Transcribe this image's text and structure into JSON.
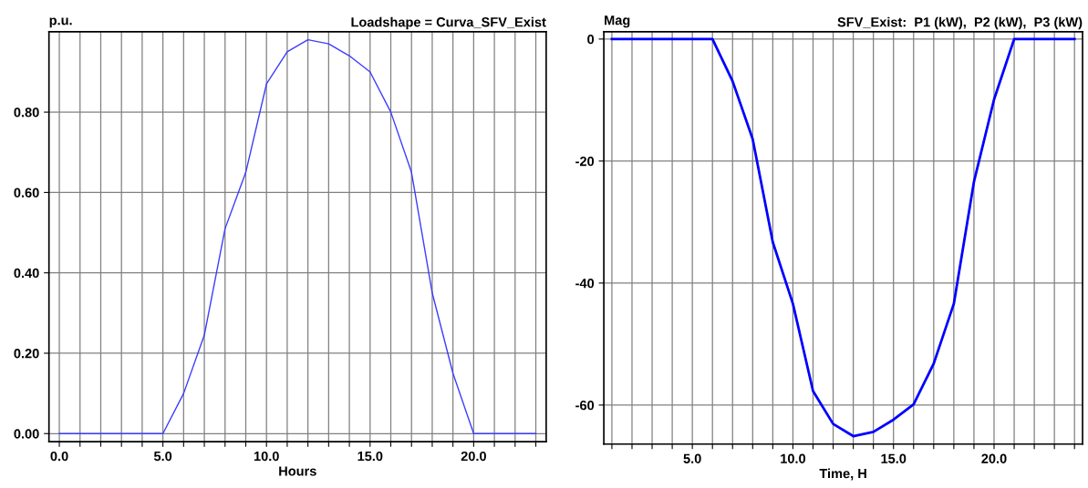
{
  "chart_data": [
    {
      "type": "line",
      "title": "Loadshape = Curva_SFV_Exist",
      "ylabel": "p.u.",
      "xlabel": "Hours",
      "x": [
        0,
        1,
        2,
        3,
        4,
        5,
        6,
        7,
        8,
        9,
        10,
        11,
        12,
        13,
        14,
        15,
        16,
        17,
        18,
        19,
        20,
        21,
        22,
        23
      ],
      "series": [
        {
          "color": "#3c3cff",
          "values": [
            0,
            0,
            0,
            0,
            0,
            0,
            0.1,
            0.245,
            0.51,
            0.65,
            0.87,
            0.95,
            0.98,
            0.97,
            0.94,
            0.9,
            0.8,
            0.65,
            0.35,
            0.15,
            0,
            0,
            0,
            0
          ]
        }
      ],
      "xlim": [
        -0.5,
        23.5
      ],
      "ylim": [
        -0.02,
        1.0
      ],
      "xticks": [
        {
          "value": 0,
          "label": "0.0"
        },
        {
          "value": 1,
          "label": null
        },
        {
          "value": 2,
          "label": null
        },
        {
          "value": 3,
          "label": null
        },
        {
          "value": 4,
          "label": null
        },
        {
          "value": 5,
          "label": "5.0"
        },
        {
          "value": 6,
          "label": null
        },
        {
          "value": 7,
          "label": null
        },
        {
          "value": 8,
          "label": null
        },
        {
          "value": 9,
          "label": null
        },
        {
          "value": 10,
          "label": "10.0"
        },
        {
          "value": 11,
          "label": null
        },
        {
          "value": 12,
          "label": null
        },
        {
          "value": 13,
          "label": null
        },
        {
          "value": 14,
          "label": null
        },
        {
          "value": 15,
          "label": "15.0"
        },
        {
          "value": 16,
          "label": null
        },
        {
          "value": 17,
          "label": null
        },
        {
          "value": 18,
          "label": null
        },
        {
          "value": 19,
          "label": null
        },
        {
          "value": 20,
          "label": "20.0"
        },
        {
          "value": 21,
          "label": null
        },
        {
          "value": 22,
          "label": null
        },
        {
          "value": 23,
          "label": null
        }
      ],
      "yticks": [
        {
          "value": 0,
          "label": "0.00"
        },
        {
          "value": 0.2,
          "label": "0.20"
        },
        {
          "value": 0.4,
          "label": "0.40"
        },
        {
          "value": 0.6,
          "label": "0.60"
        },
        {
          "value": 0.8,
          "label": "0.80"
        }
      ],
      "grid": true,
      "line_style": "solid",
      "marker": "none",
      "legend": false
    },
    {
      "type": "line",
      "title": "SFV_Exist:  P1 (kW),  P2 (kW),  P3 (kW)",
      "ylabel": "Mag",
      "xlabel": "Time, H",
      "x": [
        1,
        2,
        3,
        4,
        5,
        6,
        7,
        8,
        9,
        10,
        11,
        12,
        13,
        14,
        15,
        16,
        17,
        18,
        19,
        20,
        21,
        22,
        23,
        24
      ],
      "series": [
        {
          "color": "#0000ff",
          "values": [
            0,
            0,
            0,
            0,
            0,
            0,
            -6.9,
            -16.4,
            -33.3,
            -43.4,
            -57.7,
            -63.1,
            -65.1,
            -64.4,
            -62.4,
            -59.9,
            -53.2,
            -43.4,
            -23.4,
            -9.9,
            0,
            0,
            0,
            0
          ]
        }
      ],
      "xlim": [
        0.6,
        24.4
      ],
      "ylim": [
        -66.4,
        1.2
      ],
      "xticks": [
        {
          "value": 1,
          "label": null
        },
        {
          "value": 2,
          "label": null
        },
        {
          "value": 3,
          "label": null
        },
        {
          "value": 4,
          "label": null
        },
        {
          "value": 5,
          "label": "5.0"
        },
        {
          "value": 6,
          "label": null
        },
        {
          "value": 7,
          "label": null
        },
        {
          "value": 8,
          "label": null
        },
        {
          "value": 9,
          "label": null
        },
        {
          "value": 10,
          "label": "10.0"
        },
        {
          "value": 11,
          "label": null
        },
        {
          "value": 12,
          "label": null
        },
        {
          "value": 13,
          "label": null
        },
        {
          "value": 14,
          "label": null
        },
        {
          "value": 15,
          "label": "15.0"
        },
        {
          "value": 16,
          "label": null
        },
        {
          "value": 17,
          "label": null
        },
        {
          "value": 18,
          "label": null
        },
        {
          "value": 19,
          "label": null
        },
        {
          "value": 20,
          "label": "20.0"
        },
        {
          "value": 21,
          "label": null
        },
        {
          "value": 22,
          "label": null
        },
        {
          "value": 23,
          "label": null
        },
        {
          "value": 24,
          "label": null
        }
      ],
      "yticks": [
        0,
        -20,
        -40,
        -60
      ],
      "grid": true,
      "line_style": "solid",
      "marker": "none",
      "legend": false
    }
  ]
}
